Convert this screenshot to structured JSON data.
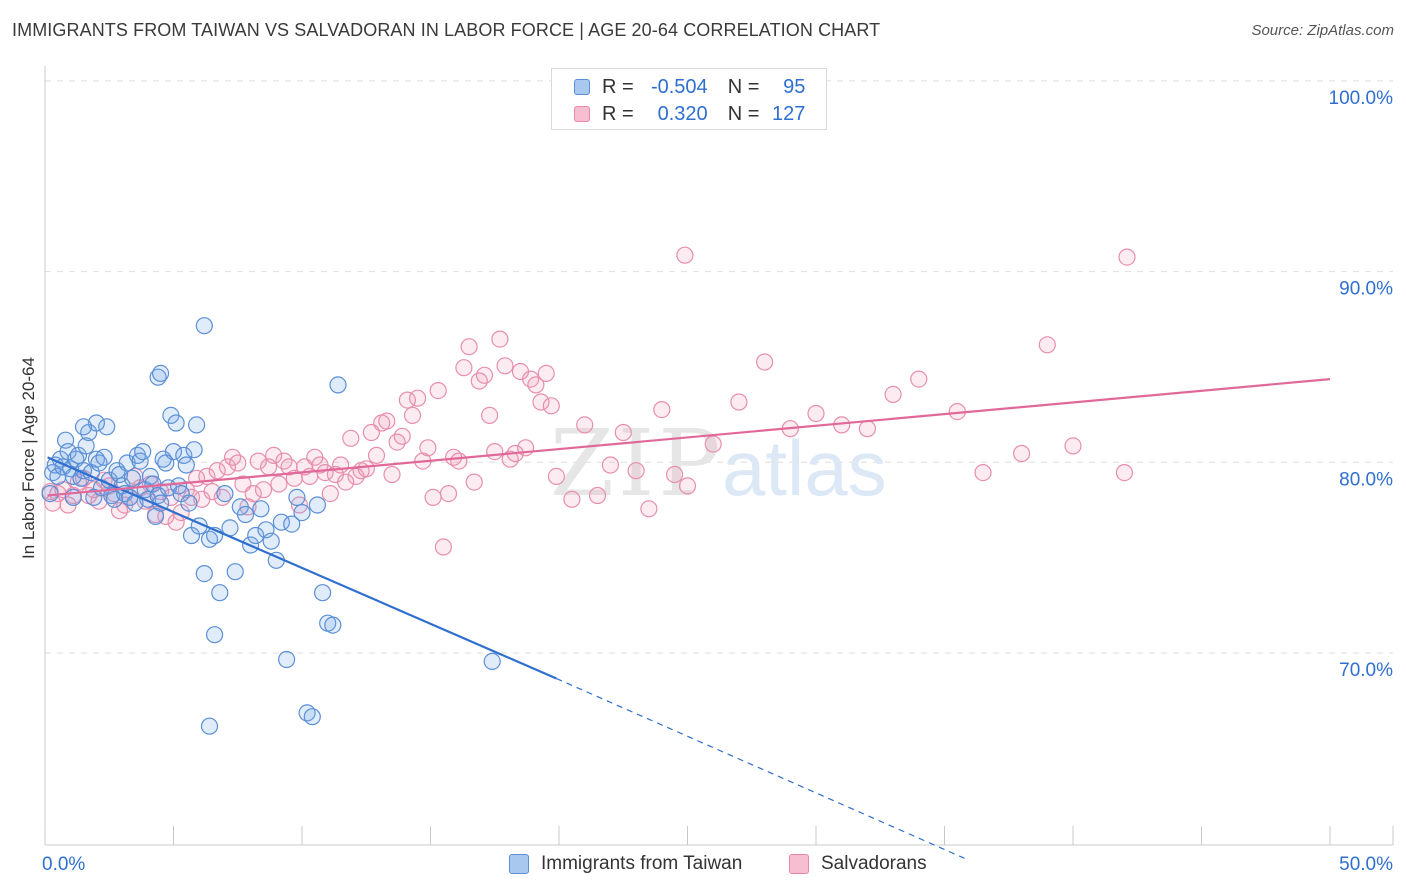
{
  "title": "IMMIGRANTS FROM TAIWAN VS SALVADORAN IN LABOR FORCE | AGE 20-64 CORRELATION CHART",
  "source": "Source: ZipAtlas.com",
  "watermark": {
    "zip": "ZIP",
    "atlas": "atlas"
  },
  "legend": {
    "rows": [
      {
        "r_label": "R =",
        "r_value": "-0.504",
        "n_label": "N =",
        "n_value": "95",
        "fill": "#a9c8ef",
        "stroke": "#5b8fd6"
      },
      {
        "r_label": "R =",
        "r_value": "0.320",
        "n_label": "N =",
        "n_value": "127",
        "fill": "#f6bed0",
        "stroke": "#e886a8"
      }
    ]
  },
  "bottom_legend": [
    {
      "label": "Immigrants from Taiwan",
      "fill": "#a9c8ef",
      "stroke": "#5b8fd6"
    },
    {
      "label": "Salvadorans",
      "fill": "#f6bed0",
      "stroke": "#e886a8"
    }
  ],
  "colors": {
    "blue_fill": "rgba(120,170,230,0.22)",
    "blue_stroke": "#5b8fd6",
    "blue_line": "#2f6fcf",
    "pink_fill": "rgba(240,150,180,0.18)",
    "pink_stroke": "#e78eae",
    "pink_line": "#e0699a",
    "axis_label": "#2f6fcf",
    "grid": "#dddddd"
  },
  "chart_data": {
    "type": "scatter",
    "title": "IMMIGRANTS FROM TAIWAN VS SALVADORAN IN LABOR FORCE | AGE 20-64 CORRELATION CHART",
    "xlabel": "",
    "ylabel": "In Labor Force | Age 20-64",
    "xlim": [
      0,
      50
    ],
    "ylim": [
      60,
      103
    ],
    "x_tick_labels": [
      {
        "value": 0,
        "label": "0.0%"
      },
      {
        "value": 50,
        "label": "50.0%"
      }
    ],
    "y_tick_labels": [
      {
        "value": 100,
        "label": "100.0%"
      },
      {
        "value": 90,
        "label": "90.0%"
      },
      {
        "value": 80,
        "label": "80.0%"
      },
      {
        "value": 70,
        "label": "70.0%"
      }
    ],
    "series": [
      {
        "name": "Immigrants from Taiwan",
        "r": -0.504,
        "n": 95,
        "trend": {
          "x0": 0.1,
          "y0": 81.1,
          "x1": 19.9,
          "y1": 69.5,
          "dashed_to_x": 35.9,
          "dashed_to_y": 60.0
        },
        "points": [
          [
            0.2,
            79.2
          ],
          [
            0.3,
            80.3
          ],
          [
            0.4,
            80.7
          ],
          [
            0.5,
            80.1
          ],
          [
            0.6,
            81.0
          ],
          [
            0.7,
            80.6
          ],
          [
            0.8,
            82.0
          ],
          [
            0.9,
            81.4
          ],
          [
            1.0,
            80.5
          ],
          [
            1.1,
            80.1
          ],
          [
            1.2,
            81.0
          ],
          [
            1.3,
            81.2
          ],
          [
            1.4,
            80.0
          ],
          [
            1.5,
            80.4
          ],
          [
            1.6,
            81.7
          ],
          [
            1.7,
            82.4
          ],
          [
            1.8,
            80.3
          ],
          [
            1.9,
            79.0
          ],
          [
            2.0,
            81.0
          ],
          [
            2.1,
            80.8
          ],
          [
            2.2,
            79.5
          ],
          [
            2.3,
            81.1
          ],
          [
            2.4,
            82.7
          ],
          [
            2.5,
            79.9
          ],
          [
            2.6,
            79.1
          ],
          [
            2.7,
            78.9
          ],
          [
            2.8,
            80.4
          ],
          [
            2.9,
            80.2
          ],
          [
            3.0,
            79.6
          ],
          [
            3.1,
            79.2
          ],
          [
            3.2,
            80.8
          ],
          [
            3.3,
            79.0
          ],
          [
            3.4,
            80.0
          ],
          [
            3.5,
            78.7
          ],
          [
            3.6,
            81.2
          ],
          [
            3.7,
            80.9
          ],
          [
            3.8,
            81.4
          ],
          [
            3.9,
            79.4
          ],
          [
            4.0,
            78.9
          ],
          [
            4.1,
            80.1
          ],
          [
            4.2,
            79.7
          ],
          [
            4.3,
            78.0
          ],
          [
            4.4,
            79.1
          ],
          [
            4.5,
            78.7
          ],
          [
            4.6,
            81.0
          ],
          [
            4.7,
            80.8
          ],
          [
            4.8,
            79.5
          ],
          [
            4.9,
            83.3
          ],
          [
            5.0,
            81.4
          ],
          [
            5.1,
            82.9
          ],
          [
            5.2,
            79.6
          ],
          [
            5.3,
            79.2
          ],
          [
            5.4,
            81.2
          ],
          [
            5.5,
            80.7
          ],
          [
            5.6,
            78.7
          ],
          [
            5.7,
            77.0
          ],
          [
            5.8,
            81.5
          ],
          [
            6.0,
            77.5
          ],
          [
            6.2,
            75.0
          ],
          [
            6.4,
            76.8
          ],
          [
            6.6,
            77.0
          ],
          [
            6.8,
            74.0
          ],
          [
            7.0,
            79.2
          ],
          [
            7.2,
            77.4
          ],
          [
            7.4,
            75.1
          ],
          [
            7.6,
            78.5
          ],
          [
            7.8,
            78.1
          ],
          [
            8.0,
            76.5
          ],
          [
            8.2,
            77.0
          ],
          [
            8.4,
            78.4
          ],
          [
            8.6,
            77.3
          ],
          [
            8.8,
            76.7
          ],
          [
            9.0,
            75.7
          ],
          [
            9.2,
            77.7
          ],
          [
            9.4,
            70.5
          ],
          [
            9.6,
            77.6
          ],
          [
            9.8,
            79.0
          ],
          [
            10.0,
            78.2
          ],
          [
            10.2,
            67.7
          ],
          [
            10.4,
            67.5
          ],
          [
            10.6,
            78.6
          ],
          [
            10.8,
            74.0
          ],
          [
            11.0,
            72.4
          ],
          [
            11.2,
            72.3
          ],
          [
            11.4,
            84.9
          ],
          [
            4.4,
            85.3
          ],
          [
            4.5,
            85.5
          ],
          [
            2.0,
            82.9
          ],
          [
            1.5,
            82.7
          ],
          [
            5.9,
            82.8
          ],
          [
            6.2,
            88.0
          ],
          [
            6.4,
            67.0
          ],
          [
            6.6,
            71.8
          ],
          [
            17.4,
            70.4
          ],
          [
            1.1,
            79.0
          ]
        ]
      },
      {
        "name": "Salvadorans",
        "r": 0.32,
        "n": 127,
        "trend": {
          "x0": 0.1,
          "y0": 79.1,
          "x1": 50.0,
          "y1": 85.2
        },
        "points": [
          [
            0.2,
            79.3
          ],
          [
            0.3,
            78.7
          ],
          [
            0.5,
            79.2
          ],
          [
            0.7,
            79.4
          ],
          [
            0.9,
            78.6
          ],
          [
            1.1,
            79.1
          ],
          [
            1.3,
            79.8
          ],
          [
            1.5,
            80.0
          ],
          [
            1.7,
            79.1
          ],
          [
            1.9,
            79.4
          ],
          [
            2.1,
            78.8
          ],
          [
            2.3,
            79.9
          ],
          [
            2.5,
            79.6
          ],
          [
            2.7,
            79.2
          ],
          [
            2.9,
            78.3
          ],
          [
            3.1,
            78.6
          ],
          [
            3.3,
            79.0
          ],
          [
            3.5,
            80.1
          ],
          [
            3.7,
            79.5
          ],
          [
            3.9,
            78.8
          ],
          [
            4.1,
            79.7
          ],
          [
            4.3,
            78.1
          ],
          [
            4.5,
            79.3
          ],
          [
            4.7,
            78.0
          ],
          [
            4.9,
            79.0
          ],
          [
            5.1,
            77.7
          ],
          [
            5.3,
            78.2
          ],
          [
            5.5,
            79.4
          ],
          [
            5.7,
            79.0
          ],
          [
            5.9,
            80.0
          ],
          [
            6.1,
            78.9
          ],
          [
            6.3,
            80.1
          ],
          [
            6.5,
            79.3
          ],
          [
            6.7,
            80.4
          ],
          [
            6.9,
            79.0
          ],
          [
            7.1,
            80.6
          ],
          [
            7.3,
            81.1
          ],
          [
            7.5,
            80.8
          ],
          [
            7.7,
            79.7
          ],
          [
            7.9,
            78.5
          ],
          [
            8.1,
            79.2
          ],
          [
            8.3,
            80.9
          ],
          [
            8.5,
            79.4
          ],
          [
            8.7,
            80.6
          ],
          [
            8.9,
            81.2
          ],
          [
            9.1,
            79.7
          ],
          [
            9.3,
            80.9
          ],
          [
            9.5,
            80.6
          ],
          [
            9.7,
            80.0
          ],
          [
            9.9,
            78.6
          ],
          [
            10.1,
            80.6
          ],
          [
            10.3,
            80.1
          ],
          [
            10.5,
            81.1
          ],
          [
            10.7,
            80.7
          ],
          [
            10.9,
            80.3
          ],
          [
            11.1,
            79.2
          ],
          [
            11.3,
            80.2
          ],
          [
            11.5,
            80.7
          ],
          [
            11.7,
            79.8
          ],
          [
            11.9,
            82.1
          ],
          [
            12.1,
            80.1
          ],
          [
            12.3,
            80.4
          ],
          [
            12.5,
            80.5
          ],
          [
            12.7,
            82.4
          ],
          [
            12.9,
            81.2
          ],
          [
            13.1,
            82.9
          ],
          [
            13.3,
            83.0
          ],
          [
            13.5,
            80.2
          ],
          [
            13.7,
            81.9
          ],
          [
            13.9,
            82.2
          ],
          [
            14.1,
            84.1
          ],
          [
            14.3,
            83.3
          ],
          [
            14.5,
            84.2
          ],
          [
            14.7,
            80.9
          ],
          [
            14.9,
            81.6
          ],
          [
            15.1,
            79.0
          ],
          [
            15.3,
            84.6
          ],
          [
            15.5,
            76.4
          ],
          [
            15.7,
            79.2
          ],
          [
            15.9,
            81.1
          ],
          [
            16.1,
            80.9
          ],
          [
            16.3,
            85.8
          ],
          [
            16.5,
            86.9
          ],
          [
            16.7,
            79.8
          ],
          [
            16.9,
            85.1
          ],
          [
            17.1,
            85.4
          ],
          [
            17.3,
            83.3
          ],
          [
            17.5,
            81.4
          ],
          [
            17.7,
            87.3
          ],
          [
            17.9,
            85.9
          ],
          [
            18.1,
            81.0
          ],
          [
            18.3,
            81.3
          ],
          [
            18.5,
            85.6
          ],
          [
            18.7,
            81.6
          ],
          [
            18.9,
            85.2
          ],
          [
            19.1,
            84.9
          ],
          [
            19.3,
            84.0
          ],
          [
            19.5,
            85.5
          ],
          [
            19.7,
            83.8
          ],
          [
            19.9,
            80.1
          ],
          [
            20.5,
            78.9
          ],
          [
            21.0,
            82.8
          ],
          [
            21.5,
            79.1
          ],
          [
            22.0,
            80.7
          ],
          [
            22.5,
            82.4
          ],
          [
            23.0,
            80.4
          ],
          [
            23.5,
            78.4
          ],
          [
            24.0,
            83.6
          ],
          [
            24.5,
            80.2
          ],
          [
            25.0,
            79.6
          ],
          [
            26.0,
            81.8
          ],
          [
            27.0,
            84.0
          ],
          [
            28.0,
            86.1
          ],
          [
            29.0,
            82.6
          ],
          [
            30.0,
            83.4
          ],
          [
            31.0,
            82.8
          ],
          [
            32.0,
            82.6
          ],
          [
            33.0,
            84.4
          ],
          [
            34.0,
            85.2
          ],
          [
            35.5,
            83.5
          ],
          [
            36.5,
            80.3
          ],
          [
            38.0,
            81.3
          ],
          [
            39.0,
            87.0
          ],
          [
            40.0,
            81.7
          ],
          [
            42.0,
            80.3
          ],
          [
            24.9,
            91.7
          ],
          [
            42.1,
            91.6
          ]
        ]
      }
    ]
  }
}
